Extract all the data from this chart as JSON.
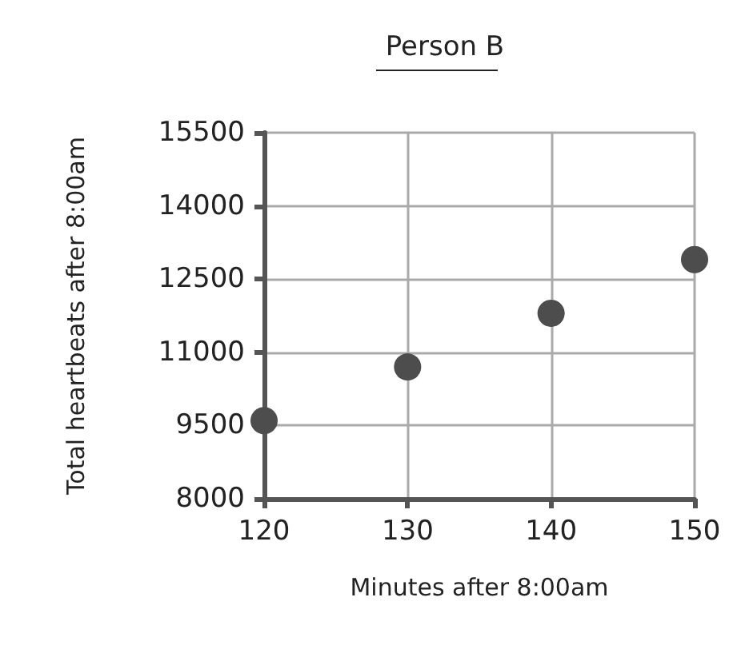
{
  "chart_data": {
    "type": "scatter",
    "title": "Person B",
    "xlabel": "Minutes after 8:00am",
    "ylabel": "Total heartbeats after 8:00am",
    "x": [
      120,
      130,
      140,
      150
    ],
    "series": [
      {
        "color": "#4d4d4d",
        "values": [
          9600,
          10700,
          11800,
          12900
        ]
      }
    ],
    "xlim": [
      120,
      150
    ],
    "xticks": [
      120,
      130,
      140,
      150
    ],
    "ylim": [
      8000,
      15500
    ],
    "yticks": [
      8000,
      9500,
      11000,
      12500,
      14000,
      15500
    ],
    "grid": true,
    "marker": "circle"
  }
}
